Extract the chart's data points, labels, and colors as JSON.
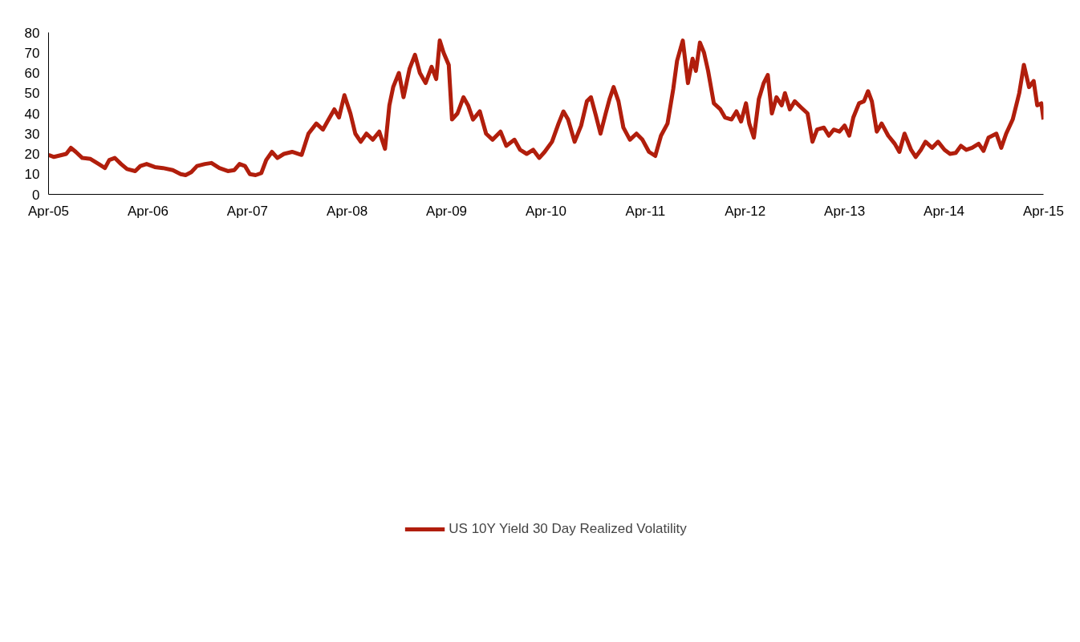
{
  "chart_data": {
    "type": "line",
    "x": [
      "2005-04-01",
      "2005-04-21",
      "2005-06-05",
      "2005-06-22",
      "2005-07-10",
      "2005-08-03",
      "2005-09-02",
      "2005-10-02",
      "2005-10-25",
      "2005-11-10",
      "2005-11-30",
      "2005-12-23",
      "2006-01-14",
      "2006-02-13",
      "2006-03-04",
      "2006-03-27",
      "2006-04-26",
      "2006-05-26",
      "2006-07-01",
      "2006-07-30",
      "2006-08-17",
      "2006-09-07",
      "2006-09-28",
      "2006-10-27",
      "2006-11-20",
      "2006-12-19",
      "2007-01-19",
      "2007-02-12",
      "2007-03-03",
      "2007-03-23",
      "2007-04-10",
      "2007-05-01",
      "2007-05-22",
      "2007-06-09",
      "2007-06-30",
      "2007-07-20",
      "2007-08-13",
      "2007-09-12",
      "2007-10-17",
      "2007-11-11",
      "2007-12-10",
      "2008-01-03",
      "2008-01-24",
      "2008-02-14",
      "2008-03-02",
      "2008-03-22",
      "2008-04-13",
      "2008-05-01",
      "2008-05-21",
      "2008-06-11",
      "2008-07-04",
      "2008-07-28",
      "2008-08-18",
      "2008-09-03",
      "2008-09-17",
      "2008-10-08",
      "2008-10-25",
      "2008-11-16",
      "2008-12-06",
      "2008-12-24",
      "2009-01-14",
      "2009-02-05",
      "2009-02-22",
      "2009-03-07",
      "2009-03-21",
      "2009-04-09",
      "2009-04-21",
      "2009-05-11",
      "2009-06-02",
      "2009-06-19",
      "2009-07-07",
      "2009-08-01",
      "2009-08-24",
      "2009-09-17",
      "2009-10-16",
      "2009-11-06",
      "2009-12-06",
      "2009-12-27",
      "2010-01-20",
      "2010-02-13",
      "2010-03-07",
      "2010-03-27",
      "2010-04-23",
      "2010-05-17",
      "2010-06-04",
      "2010-06-21",
      "2010-07-15",
      "2010-08-08",
      "2010-08-29",
      "2010-09-13",
      "2010-10-01",
      "2010-10-18",
      "2010-11-06",
      "2010-11-20",
      "2010-12-05",
      "2010-12-23",
      "2011-01-10",
      "2011-02-03",
      "2011-02-27",
      "2011-03-21",
      "2011-04-14",
      "2011-05-07",
      "2011-05-28",
      "2011-06-21",
      "2011-07-12",
      "2011-07-26",
      "2011-08-16",
      "2011-09-04",
      "2011-09-21",
      "2011-10-03",
      "2011-10-18",
      "2011-11-02",
      "2011-11-17",
      "2011-12-08",
      "2012-01-01",
      "2012-01-18",
      "2012-02-11",
      "2012-02-29",
      "2012-03-17",
      "2012-04-04",
      "2012-04-16",
      "2012-05-03",
      "2012-05-21",
      "2012-06-08",
      "2012-06-23",
      "2012-07-08",
      "2012-07-25",
      "2012-08-13",
      "2012-08-25",
      "2012-09-12",
      "2012-09-30",
      "2012-10-23",
      "2012-11-16",
      "2012-12-04",
      "2012-12-21",
      "2013-01-15",
      "2013-02-02",
      "2013-02-20",
      "2013-03-13",
      "2013-04-01",
      "2013-04-18",
      "2013-05-03",
      "2013-05-24",
      "2013-06-11",
      "2013-06-26",
      "2013-07-10",
      "2013-07-28",
      "2013-08-15",
      "2013-09-08",
      "2013-10-02",
      "2013-10-19",
      "2013-11-07",
      "2013-12-01",
      "2013-12-18",
      "2014-01-06",
      "2014-01-23",
      "2014-02-16",
      "2014-03-10",
      "2014-04-03",
      "2014-04-23",
      "2014-05-14",
      "2014-06-02",
      "2014-06-22",
      "2014-07-13",
      "2014-08-06",
      "2014-08-24",
      "2014-09-11",
      "2014-10-10",
      "2014-10-28",
      "2014-11-15",
      "2014-12-09",
      "2015-01-02",
      "2015-01-19",
      "2015-02-07",
      "2015-02-24",
      "2015-03-09",
      "2015-03-24",
      "2015-04-01"
    ],
    "series": [
      {
        "name": "US 10Y Yield 30 Day Realized Volatility",
        "color": "#b11e0c",
        "values": [
          19.5,
          18.5,
          20,
          23,
          21,
          18,
          17.5,
          15,
          13,
          17,
          18,
          15,
          12.5,
          11.5,
          14,
          15,
          13.5,
          13,
          12,
          10,
          9.5,
          11,
          14,
          15,
          15.5,
          13,
          11.5,
          12,
          15,
          14,
          10,
          9.5,
          10.5,
          17,
          21,
          18,
          20,
          21,
          19.5,
          30,
          35,
          32,
          37,
          42,
          38,
          49,
          40,
          30,
          26,
          30,
          27,
          31,
          22.5,
          44,
          53,
          60,
          48,
          62,
          69,
          60,
          55,
          63,
          57,
          76,
          70,
          64,
          37,
          40,
          48,
          44,
          37,
          41,
          30,
          27,
          31,
          24,
          27,
          22,
          20,
          22,
          18,
          21,
          26,
          35,
          41,
          37,
          26,
          34,
          46,
          48,
          39,
          30,
          40,
          47,
          53,
          46,
          33,
          27,
          30,
          27,
          21,
          19,
          29,
          35,
          52,
          66,
          76,
          55,
          67,
          61,
          75,
          70,
          61,
          45,
          42,
          38,
          37,
          41,
          36,
          45,
          35,
          28,
          47,
          55,
          59,
          40,
          48,
          44,
          50,
          42,
          46,
          43,
          40,
          26,
          32,
          33,
          29,
          32,
          31,
          34,
          29,
          38,
          45,
          46,
          51,
          46,
          31,
          35,
          29,
          25,
          21,
          30,
          22,
          18.5,
          22,
          26,
          23,
          26,
          22,
          20,
          20.5,
          24,
          22,
          23,
          25,
          21.5,
          28,
          30,
          23,
          30,
          37,
          50,
          64,
          53,
          56,
          44,
          45,
          37
        ]
      }
    ],
    "xlim": [
      "2005-04-01",
      "2015-04-01"
    ],
    "xticks": [
      {
        "value": "2005-04-01",
        "label": "Apr-05"
      },
      {
        "value": "2006-04-01",
        "label": "Apr-06"
      },
      {
        "value": "2007-04-01",
        "label": "Apr-07"
      },
      {
        "value": "2008-04-01",
        "label": "Apr-08"
      },
      {
        "value": "2009-04-01",
        "label": "Apr-09"
      },
      {
        "value": "2010-04-01",
        "label": "Apr-10"
      },
      {
        "value": "2011-04-01",
        "label": "Apr-11"
      },
      {
        "value": "2012-04-01",
        "label": "Apr-12"
      },
      {
        "value": "2013-04-01",
        "label": "Apr-13"
      },
      {
        "value": "2014-04-01",
        "label": "Apr-14"
      },
      {
        "value": "2015-04-01",
        "label": "Apr-15"
      }
    ],
    "ylim": [
      0,
      80
    ],
    "yticks": [
      0,
      10,
      20,
      30,
      40,
      50,
      60,
      70,
      80
    ],
    "legend": "bottom"
  }
}
